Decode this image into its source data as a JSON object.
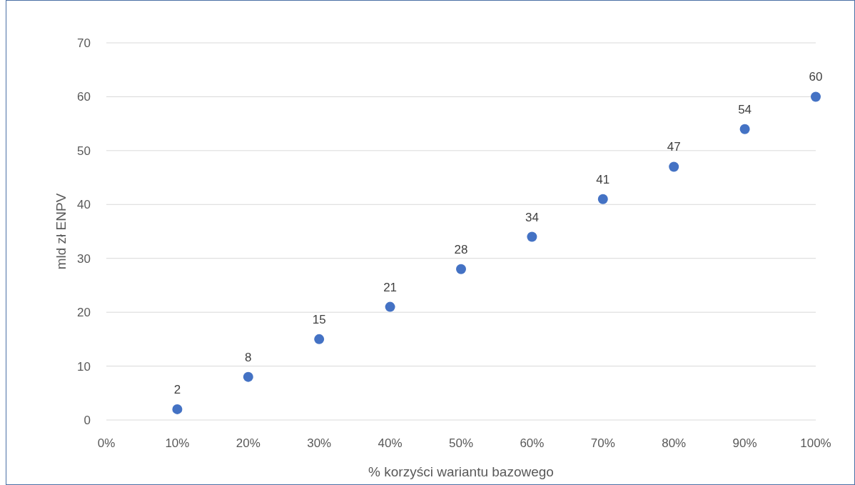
{
  "chart_data": {
    "type": "scatter",
    "xlabel": "% korzyści wariantu bazowego",
    "ylabel": "mld zł ENPV",
    "x": [
      10,
      20,
      30,
      40,
      50,
      60,
      70,
      80,
      90,
      100
    ],
    "values": [
      2,
      8,
      15,
      21,
      28,
      34,
      41,
      47,
      54,
      60
    ],
    "color": "#4472c4",
    "marker": "circle",
    "data_labels": true,
    "grid": "y",
    "xlim": [
      0,
      100
    ],
    "xticks": [
      {
        "value": 0,
        "label": "0%"
      },
      {
        "value": 10,
        "label": "10%"
      },
      {
        "value": 20,
        "label": "20%"
      },
      {
        "value": 30,
        "label": "30%"
      },
      {
        "value": 40,
        "label": "40%"
      },
      {
        "value": 50,
        "label": "50%"
      },
      {
        "value": 60,
        "label": "60%"
      },
      {
        "value": 70,
        "label": "70%"
      },
      {
        "value": 80,
        "label": "80%"
      },
      {
        "value": 90,
        "label": "90%"
      },
      {
        "value": 100,
        "label": "100%"
      }
    ],
    "ylim": [
      0,
      70
    ],
    "yticks": [
      0,
      10,
      20,
      30,
      40,
      50,
      60,
      70
    ]
  }
}
